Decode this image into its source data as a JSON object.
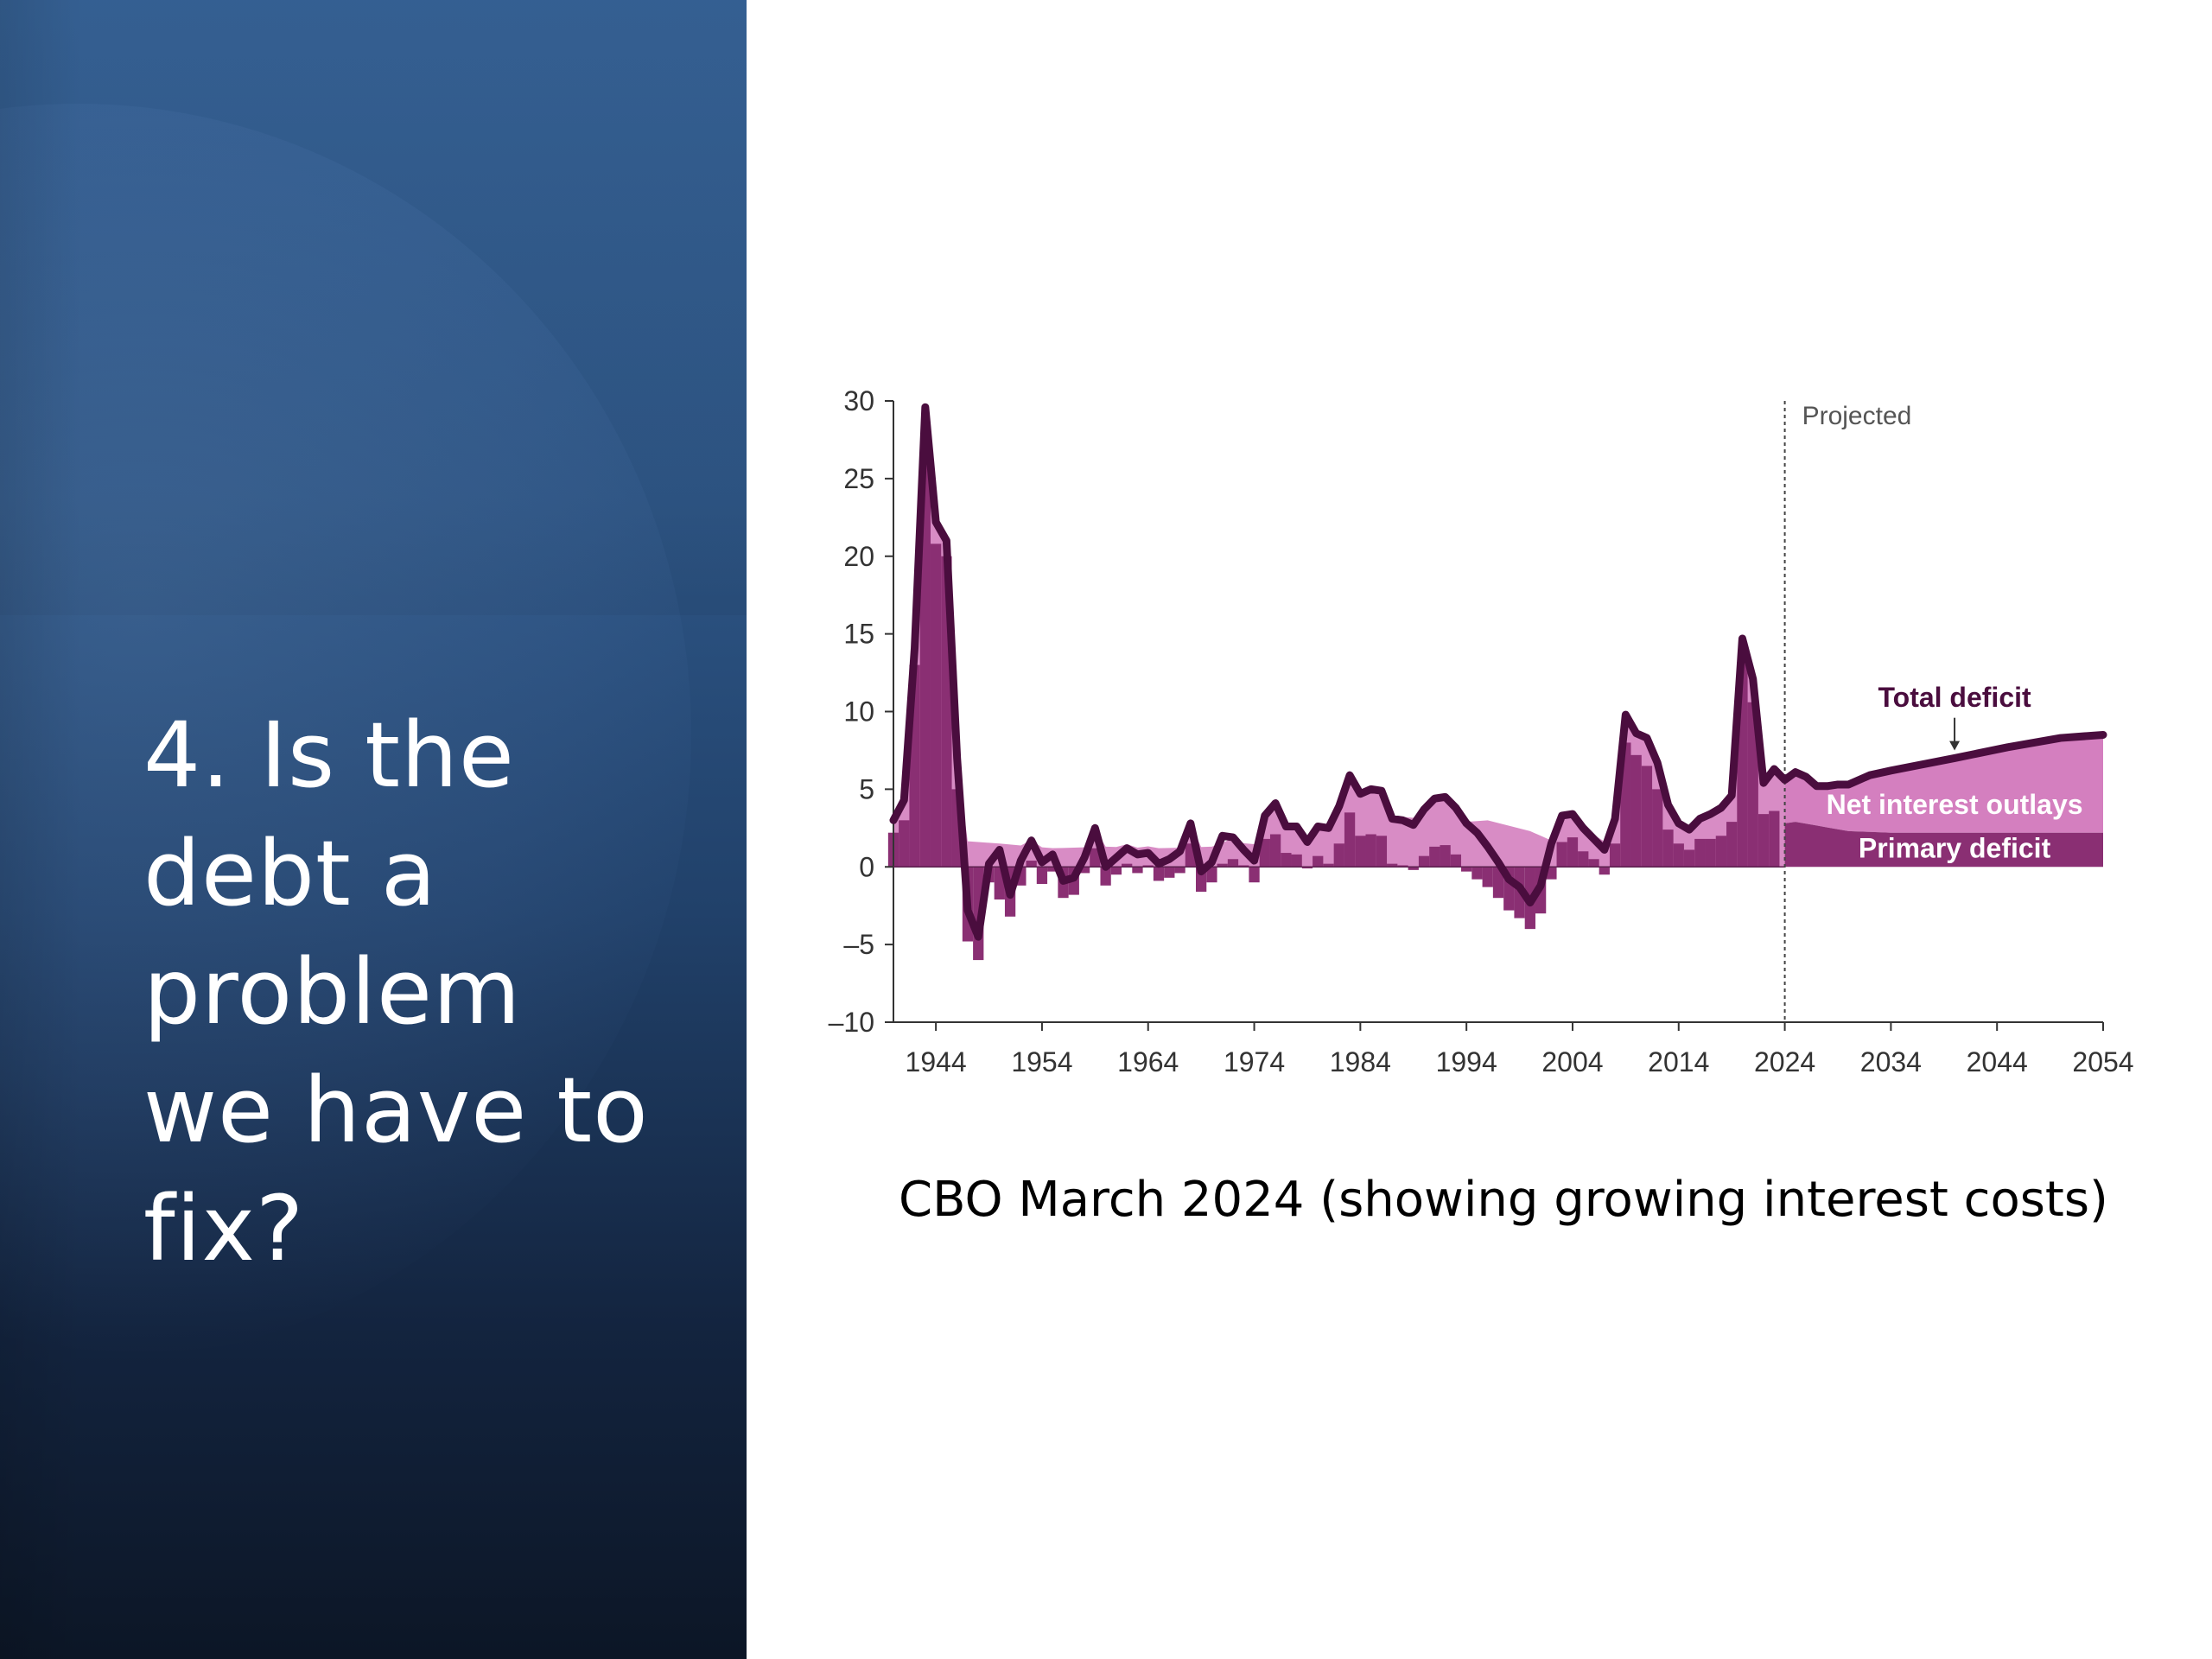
{
  "slide": {
    "title_lines": [
      "4. Is the",
      "debt a",
      "problem",
      "we have to",
      "fix?"
    ],
    "caption": "CBO March 2024 (showing growing interest costs)"
  },
  "colors": {
    "panel_top": "#2e5a8e",
    "panel_bottom": "#0c1626",
    "total_deficit_line": "#4a0d3e",
    "primary_deficit_fill": "#8a2f73",
    "net_interest_fill": "#d47fbf"
  },
  "chart_data": {
    "type": "area",
    "x_start": 1940,
    "x_end": 2054,
    "ylim": [
      -10,
      30
    ],
    "y_ticks": [
      "30",
      "25",
      "20",
      "15",
      "10",
      "5",
      "0",
      "–5",
      "–10"
    ],
    "x_ticks": [
      "1944",
      "1954",
      "1964",
      "1974",
      "1984",
      "1994",
      "2004",
      "2014",
      "2024",
      "2034",
      "2044",
      "2054"
    ],
    "projected_start": 2024,
    "projected_label": "Projected",
    "grid": false,
    "series": [
      {
        "name": "Net interest outlays",
        "label": "Net interest outlays",
        "kind": "area",
        "values": [
          [
            1940,
            0.9
          ],
          [
            1943,
            1.0
          ],
          [
            1945,
            1.5
          ],
          [
            1946,
            1.7
          ],
          [
            1950,
            1.5
          ],
          [
            1955,
            1.2
          ],
          [
            1960,
            1.3
          ],
          [
            1965,
            1.2
          ],
          [
            1970,
            1.3
          ],
          [
            1975,
            1.5
          ],
          [
            1978,
            1.6
          ],
          [
            1980,
            1.9
          ],
          [
            1982,
            2.5
          ],
          [
            1985,
            3.0
          ],
          [
            1990,
            3.2
          ],
          [
            1994,
            2.9
          ],
          [
            1996,
            3.0
          ],
          [
            2000,
            2.3
          ],
          [
            2002,
            1.7
          ],
          [
            2005,
            1.5
          ],
          [
            2008,
            1.7
          ],
          [
            2010,
            1.5
          ],
          [
            2013,
            1.3
          ],
          [
            2016,
            1.4
          ],
          [
            2019,
            1.7
          ],
          [
            2021,
            1.5
          ],
          [
            2022,
            1.9
          ],
          [
            2023,
            2.4
          ],
          [
            2024,
            3.1
          ],
          [
            2025,
            3.2
          ],
          [
            2030,
            3.6
          ],
          [
            2034,
            3.9
          ],
          [
            2040,
            4.6
          ],
          [
            2045,
            5.2
          ],
          [
            2050,
            5.9
          ],
          [
            2054,
            6.3
          ]
        ]
      },
      {
        "name": "Primary deficit",
        "label": "Primary deficit",
        "kind": "bars",
        "values": [
          [
            1940,
            2.2
          ],
          [
            1941,
            3.0
          ],
          [
            1942,
            13.0
          ],
          [
            1943,
            26.0
          ],
          [
            1944,
            20.8
          ],
          [
            1945,
            20.0
          ],
          [
            1946,
            5.0
          ],
          [
            1947,
            -4.8
          ],
          [
            1948,
            -6.0
          ],
          [
            1949,
            -1.0
          ],
          [
            1950,
            -2.1
          ],
          [
            1951,
            -3.2
          ],
          [
            1952,
            -1.2
          ],
          [
            1953,
            0.4
          ],
          [
            1954,
            -1.1
          ],
          [
            1955,
            -0.3
          ],
          [
            1956,
            -2.0
          ],
          [
            1957,
            -1.8
          ],
          [
            1958,
            -0.4
          ],
          [
            1959,
            1.2
          ],
          [
            1960,
            -1.2
          ],
          [
            1961,
            -0.5
          ],
          [
            1962,
            0.2
          ],
          [
            1963,
            -0.4
          ],
          [
            1964,
            0.1
          ],
          [
            1965,
            -0.9
          ],
          [
            1966,
            -0.7
          ],
          [
            1967,
            -0.4
          ],
          [
            1968,
            1.5
          ],
          [
            1969,
            -1.6
          ],
          [
            1970,
            -1.0
          ],
          [
            1971,
            0.2
          ],
          [
            1972,
            0.5
          ],
          [
            1973,
            0.1
          ],
          [
            1974,
            -1.0
          ],
          [
            1975,
            1.8
          ],
          [
            1976,
            2.1
          ],
          [
            1977,
            0.9
          ],
          [
            1978,
            0.8
          ],
          [
            1979,
            -0.1
          ],
          [
            1980,
            0.7
          ],
          [
            1981,
            0.2
          ],
          [
            1982,
            1.5
          ],
          [
            1983,
            3.5
          ],
          [
            1984,
            2.0
          ],
          [
            1985,
            2.1
          ],
          [
            1986,
            2.0
          ],
          [
            1987,
            0.2
          ],
          [
            1988,
            0.1
          ],
          [
            1989,
            -0.2
          ],
          [
            1990,
            0.7
          ],
          [
            1991,
            1.3
          ],
          [
            1992,
            1.4
          ],
          [
            1993,
            0.8
          ],
          [
            1994,
            -0.3
          ],
          [
            1995,
            -0.8
          ],
          [
            1996,
            -1.3
          ],
          [
            1997,
            -2.0
          ],
          [
            1998,
            -2.8
          ],
          [
            1999,
            -3.3
          ],
          [
            2000,
            -4.0
          ],
          [
            2001,
            -3.0
          ],
          [
            2002,
            -0.8
          ],
          [
            2003,
            1.6
          ],
          [
            2004,
            1.9
          ],
          [
            2005,
            1.0
          ],
          [
            2006,
            0.5
          ],
          [
            2007,
            -0.5
          ],
          [
            2008,
            1.5
          ],
          [
            2009,
            8.0
          ],
          [
            2010,
            7.2
          ],
          [
            2011,
            6.5
          ],
          [
            2012,
            5.0
          ],
          [
            2013,
            2.4
          ],
          [
            2014,
            1.5
          ],
          [
            2015,
            1.1
          ],
          [
            2016,
            1.8
          ],
          [
            2017,
            1.8
          ],
          [
            2018,
            2.0
          ],
          [
            2019,
            2.9
          ],
          [
            2020,
            13.2
          ],
          [
            2021,
            10.6
          ],
          [
            2022,
            3.4
          ],
          [
            2023,
            3.6
          ],
          [
            2024,
            2.8
          ],
          [
            2025,
            2.9
          ],
          [
            2030,
            2.3
          ],
          [
            2034,
            2.2
          ],
          [
            2040,
            2.2
          ],
          [
            2045,
            2.2
          ],
          [
            2050,
            2.2
          ],
          [
            2054,
            2.2
          ]
        ]
      },
      {
        "name": "Total deficit",
        "label": "Total deficit",
        "kind": "line",
        "values": [
          [
            1940,
            3.0
          ],
          [
            1941,
            4.3
          ],
          [
            1942,
            14.1
          ],
          [
            1943,
            29.6
          ],
          [
            1944,
            22.2
          ],
          [
            1945,
            21.0
          ],
          [
            1946,
            7.0
          ],
          [
            1947,
            -2.8
          ],
          [
            1948,
            -4.5
          ],
          [
            1949,
            0.2
          ],
          [
            1950,
            1.1
          ],
          [
            1951,
            -1.8
          ],
          [
            1952,
            0.4
          ],
          [
            1953,
            1.7
          ],
          [
            1954,
            0.3
          ],
          [
            1955,
            0.8
          ],
          [
            1956,
            -0.9
          ],
          [
            1957,
            -0.7
          ],
          [
            1958,
            0.6
          ],
          [
            1959,
            2.5
          ],
          [
            1960,
            0.0
          ],
          [
            1961,
            0.6
          ],
          [
            1962,
            1.2
          ],
          [
            1963,
            0.8
          ],
          [
            1964,
            0.9
          ],
          [
            1965,
            0.2
          ],
          [
            1966,
            0.5
          ],
          [
            1967,
            1.0
          ],
          [
            1968,
            2.8
          ],
          [
            1969,
            -0.3
          ],
          [
            1970,
            0.3
          ],
          [
            1971,
            2.0
          ],
          [
            1972,
            1.9
          ],
          [
            1973,
            1.1
          ],
          [
            1974,
            0.4
          ],
          [
            1975,
            3.3
          ],
          [
            1976,
            4.1
          ],
          [
            1977,
            2.6
          ],
          [
            1978,
            2.6
          ],
          [
            1979,
            1.6
          ],
          [
            1980,
            2.6
          ],
          [
            1981,
            2.5
          ],
          [
            1982,
            3.9
          ],
          [
            1983,
            5.9
          ],
          [
            1984,
            4.7
          ],
          [
            1985,
            5.0
          ],
          [
            1986,
            4.9
          ],
          [
            1987,
            3.1
          ],
          [
            1988,
            3.0
          ],
          [
            1989,
            2.7
          ],
          [
            1990,
            3.7
          ],
          [
            1991,
            4.4
          ],
          [
            1992,
            4.5
          ],
          [
            1993,
            3.8
          ],
          [
            1994,
            2.8
          ],
          [
            1995,
            2.2
          ],
          [
            1996,
            1.3
          ],
          [
            1997,
            0.3
          ],
          [
            1998,
            -0.8
          ],
          [
            1999,
            -1.3
          ],
          [
            2000,
            -2.3
          ],
          [
            2001,
            -1.2
          ],
          [
            2002,
            1.5
          ],
          [
            2003,
            3.3
          ],
          [
            2004,
            3.4
          ],
          [
            2005,
            2.5
          ],
          [
            2006,
            1.8
          ],
          [
            2007,
            1.1
          ],
          [
            2008,
            3.1
          ],
          [
            2009,
            9.8
          ],
          [
            2010,
            8.6
          ],
          [
            2011,
            8.3
          ],
          [
            2012,
            6.7
          ],
          [
            2013,
            4.0
          ],
          [
            2014,
            2.8
          ],
          [
            2015,
            2.4
          ],
          [
            2016,
            3.1
          ],
          [
            2017,
            3.4
          ],
          [
            2018,
            3.8
          ],
          [
            2019,
            4.6
          ],
          [
            2020,
            14.7
          ],
          [
            2021,
            12.1
          ],
          [
            2022,
            5.4
          ],
          [
            2023,
            6.3
          ],
          [
            2024,
            5.6
          ],
          [
            2025,
            6.1
          ],
          [
            2026,
            5.8
          ],
          [
            2027,
            5.2
          ],
          [
            2028,
            5.2
          ],
          [
            2029,
            5.3
          ],
          [
            2030,
            5.3
          ],
          [
            2032,
            5.9
          ],
          [
            2034,
            6.2
          ],
          [
            2040,
            7.0
          ],
          [
            2045,
            7.7
          ],
          [
            2050,
            8.3
          ],
          [
            2054,
            8.5
          ]
        ]
      }
    ]
  }
}
